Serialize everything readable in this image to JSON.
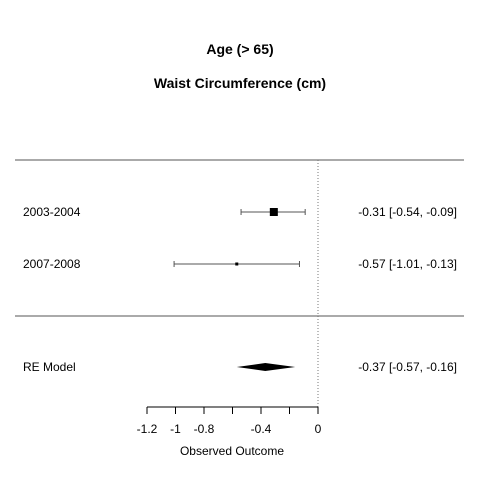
{
  "chart_data": {
    "type": "forest",
    "title": "Age (> 65)",
    "subtitle": "Waist Circumference (cm)",
    "xlabel": "Observed Outcome",
    "xlim": [
      -1.2,
      0
    ],
    "xticks": [
      -1.2,
      -1,
      -0.8,
      -0.4,
      0
    ],
    "xtick_labels": [
      "-1.2",
      "-1",
      "-0.8",
      "-0.4",
      "0"
    ],
    "reference_line": 0,
    "studies": [
      {
        "label": "2003-2004",
        "estimate": -0.31,
        "lower": -0.54,
        "upper": -0.09,
        "ci_text": "-0.31 [-0.54, -0.09]"
      },
      {
        "label": "2007-2008",
        "estimate": -0.57,
        "lower": -1.01,
        "upper": -0.13,
        "ci_text": "-0.57 [-1.01, -0.13]"
      }
    ],
    "summary": {
      "label": "RE Model",
      "estimate": -0.37,
      "lower": -0.57,
      "upper": -0.16,
      "ci_text": "-0.37 [-0.57, -0.16]"
    }
  }
}
